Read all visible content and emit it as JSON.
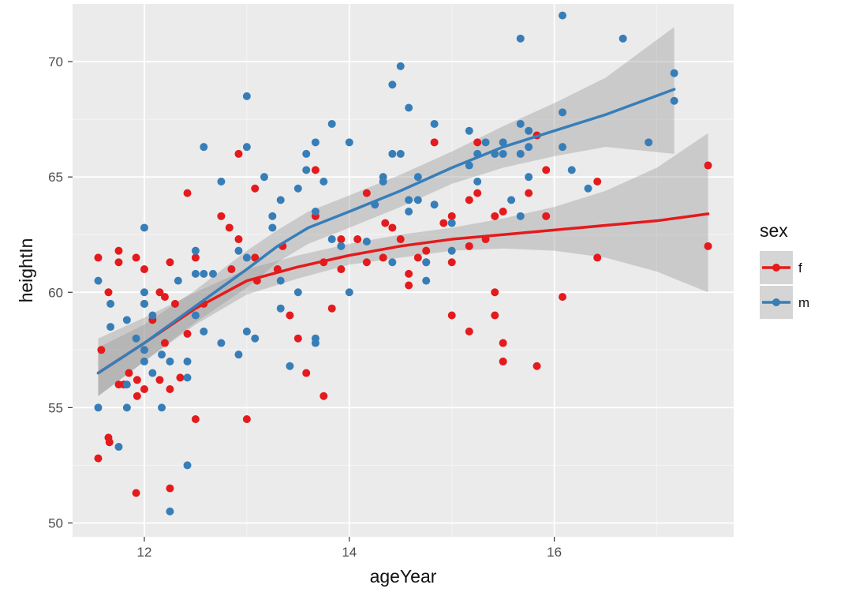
{
  "chart_data": {
    "type": "scatter",
    "title": "",
    "xlabel": "ageYear",
    "ylabel": "heightIn",
    "xlim": [
      11.3,
      17.75
    ],
    "ylim": [
      49.4,
      72.5
    ],
    "x_ticks": [
      12,
      14,
      16
    ],
    "x_tick_labels": [
      "12",
      "14",
      "16"
    ],
    "y_ticks": [
      50,
      55,
      60,
      65,
      70
    ],
    "y_tick_labels": [
      "50",
      "55",
      "60",
      "65",
      "70"
    ],
    "grid": true,
    "legend": {
      "title": "sex",
      "position": "right",
      "entries": [
        {
          "label": "f",
          "color": "#e41a1c"
        },
        {
          "label": "m",
          "color": "#377eb8"
        }
      ]
    },
    "series": [
      {
        "name": "f",
        "color": "#e41a1c",
        "points": [
          [
            11.55,
            61.5
          ],
          [
            11.58,
            57.5
          ],
          [
            11.55,
            52.8
          ],
          [
            11.65,
            53.7
          ],
          [
            11.66,
            53.5
          ],
          [
            11.65,
            60
          ],
          [
            11.75,
            61.8
          ],
          [
            11.75,
            61.3
          ],
          [
            11.75,
            56
          ],
          [
            11.8,
            56
          ],
          [
            11.85,
            56.5
          ],
          [
            11.92,
            61.5
          ],
          [
            11.93,
            56.2
          ],
          [
            11.93,
            55.5
          ],
          [
            11.92,
            51.3
          ],
          [
            12,
            61
          ],
          [
            12,
            55.8
          ],
          [
            12,
            59.5
          ],
          [
            12.08,
            58.8
          ],
          [
            12.15,
            60
          ],
          [
            12.15,
            56.2
          ],
          [
            12.2,
            59.8
          ],
          [
            12.2,
            57.8
          ],
          [
            12.25,
            61.3
          ],
          [
            12.25,
            51.5
          ],
          [
            12.25,
            55.8
          ],
          [
            12.3,
            59.5
          ],
          [
            12.35,
            56.3
          ],
          [
            12.42,
            64.3
          ],
          [
            12.42,
            58.2
          ],
          [
            12.5,
            61.5
          ],
          [
            12.5,
            54.5
          ],
          [
            12.58,
            59.5
          ],
          [
            12.75,
            63.3
          ],
          [
            12.83,
            62.8
          ],
          [
            12.85,
            61
          ],
          [
            12.92,
            66
          ],
          [
            12.92,
            62.3
          ],
          [
            13,
            54.5
          ],
          [
            13.08,
            64.5
          ],
          [
            13.08,
            61.5
          ],
          [
            13.1,
            60.5
          ],
          [
            13.3,
            61
          ],
          [
            13.35,
            62
          ],
          [
            13.42,
            59
          ],
          [
            13.5,
            58
          ],
          [
            13.58,
            56.5
          ],
          [
            13.67,
            63.3
          ],
          [
            13.67,
            65.3
          ],
          [
            13.75,
            55.5
          ],
          [
            13.75,
            61.3
          ],
          [
            13.83,
            59.3
          ],
          [
            13.92,
            61
          ],
          [
            13.92,
            62.3
          ],
          [
            14.08,
            62.3
          ],
          [
            14.17,
            61.3
          ],
          [
            14.17,
            64.3
          ],
          [
            14.33,
            61.5
          ],
          [
            14.35,
            63
          ],
          [
            14.42,
            62.8
          ],
          [
            14.5,
            62.3
          ],
          [
            14.58,
            60.3
          ],
          [
            14.58,
            60.8
          ],
          [
            14.67,
            61.5
          ],
          [
            14.75,
            61.8
          ],
          [
            14.75,
            61.3
          ],
          [
            14.83,
            66.5
          ],
          [
            14.92,
            63
          ],
          [
            15,
            63.3
          ],
          [
            15,
            59
          ],
          [
            15,
            61.3
          ],
          [
            15.17,
            64
          ],
          [
            15.17,
            58.3
          ],
          [
            15.17,
            62
          ],
          [
            15.25,
            64.3
          ],
          [
            15.25,
            66.5
          ],
          [
            15.33,
            62.3
          ],
          [
            15.42,
            60
          ],
          [
            15.42,
            59
          ],
          [
            15.42,
            63.3
          ],
          [
            15.5,
            63.5
          ],
          [
            15.5,
            57.8
          ],
          [
            15.5,
            57
          ],
          [
            15.75,
            64.3
          ],
          [
            15.83,
            56.8
          ],
          [
            15.83,
            66.8
          ],
          [
            15.92,
            65.3
          ],
          [
            15.92,
            63.3
          ],
          [
            16.08,
            59.8
          ],
          [
            16.42,
            64.8
          ],
          [
            16.42,
            61.5
          ],
          [
            17.5,
            65.5
          ],
          [
            17.5,
            62
          ]
        ]
      },
      {
        "name": "m",
        "color": "#377eb8",
        "points": [
          [
            11.55,
            60.5
          ],
          [
            11.55,
            55
          ],
          [
            11.67,
            59.5
          ],
          [
            11.67,
            58.5
          ],
          [
            11.75,
            53.3
          ],
          [
            11.83,
            58.8
          ],
          [
            11.83,
            55
          ],
          [
            11.83,
            56
          ],
          [
            11.92,
            58
          ],
          [
            12,
            62.8
          ],
          [
            12,
            60
          ],
          [
            12,
            59.5
          ],
          [
            12,
            57.5
          ],
          [
            12,
            57
          ],
          [
            12.08,
            59
          ],
          [
            12.08,
            56.5
          ],
          [
            12.17,
            57.3
          ],
          [
            12.17,
            55
          ],
          [
            12.25,
            57
          ],
          [
            12.25,
            50.5
          ],
          [
            12.33,
            60.5
          ],
          [
            12.42,
            57
          ],
          [
            12.42,
            56.3
          ],
          [
            12.42,
            52.5
          ],
          [
            12.5,
            61.8
          ],
          [
            12.5,
            60.8
          ],
          [
            12.5,
            59
          ],
          [
            12.58,
            66.3
          ],
          [
            12.58,
            60.8
          ],
          [
            12.58,
            58.3
          ],
          [
            12.67,
            60.8
          ],
          [
            12.75,
            64.8
          ],
          [
            12.75,
            57.8
          ],
          [
            12.92,
            61.8
          ],
          [
            12.92,
            57.3
          ],
          [
            13,
            68.5
          ],
          [
            13,
            66.3
          ],
          [
            13,
            61.5
          ],
          [
            13,
            58.3
          ],
          [
            13.08,
            58
          ],
          [
            13.17,
            65
          ],
          [
            13.25,
            63.3
          ],
          [
            13.25,
            62.8
          ],
          [
            13.33,
            64
          ],
          [
            13.33,
            60.5
          ],
          [
            13.33,
            59.3
          ],
          [
            13.42,
            56.8
          ],
          [
            13.5,
            64.5
          ],
          [
            13.5,
            60
          ],
          [
            13.58,
            66
          ],
          [
            13.58,
            65.3
          ],
          [
            13.67,
            66.5
          ],
          [
            13.67,
            63.5
          ],
          [
            13.67,
            58
          ],
          [
            13.67,
            57.8
          ],
          [
            13.75,
            64.8
          ],
          [
            13.83,
            67.3
          ],
          [
            13.83,
            62.3
          ],
          [
            13.92,
            62
          ],
          [
            14,
            66.5
          ],
          [
            14,
            60
          ],
          [
            14.17,
            62.2
          ],
          [
            14.25,
            63.8
          ],
          [
            14.33,
            65
          ],
          [
            14.33,
            64.8
          ],
          [
            14.42,
            69
          ],
          [
            14.42,
            66
          ],
          [
            14.42,
            61.3
          ],
          [
            14.5,
            69.8
          ],
          [
            14.5,
            66
          ],
          [
            14.58,
            68
          ],
          [
            14.58,
            64
          ],
          [
            14.58,
            63.5
          ],
          [
            14.67,
            65
          ],
          [
            14.67,
            64
          ],
          [
            14.75,
            61.3
          ],
          [
            14.75,
            60.5
          ],
          [
            14.83,
            67.3
          ],
          [
            14.83,
            63.8
          ],
          [
            15,
            63
          ],
          [
            15,
            61.8
          ],
          [
            15.17,
            67
          ],
          [
            15.17,
            65.5
          ],
          [
            15.25,
            66
          ],
          [
            15.25,
            64.8
          ],
          [
            15.33,
            66.5
          ],
          [
            15.42,
            66
          ],
          [
            15.5,
            66.5
          ],
          [
            15.5,
            66
          ],
          [
            15.58,
            64
          ],
          [
            15.67,
            71
          ],
          [
            15.67,
            67.3
          ],
          [
            15.67,
            66
          ],
          [
            15.67,
            63.3
          ],
          [
            15.75,
            67
          ],
          [
            15.75,
            66.3
          ],
          [
            15.75,
            65
          ],
          [
            16.08,
            72
          ],
          [
            16.08,
            67.8
          ],
          [
            16.08,
            66.3
          ],
          [
            16.17,
            65.3
          ],
          [
            16.33,
            64.5
          ],
          [
            16.67,
            71
          ],
          [
            16.92,
            66.5
          ],
          [
            17.17,
            69.5
          ],
          [
            17.17,
            68.3
          ]
        ]
      }
    ],
    "smooth": [
      {
        "name": "f",
        "color": "#e41a1c",
        "line": [
          [
            11.55,
            56.5
          ],
          [
            12,
            57.8
          ],
          [
            12.5,
            59.3
          ],
          [
            13,
            60.5
          ],
          [
            13.5,
            61.1
          ],
          [
            14,
            61.6
          ],
          [
            14.5,
            62
          ],
          [
            15,
            62.3
          ],
          [
            15.5,
            62.5
          ],
          [
            16,
            62.7
          ],
          [
            16.5,
            62.9
          ],
          [
            17,
            63.1
          ],
          [
            17.5,
            63.4
          ]
        ],
        "band": [
          [
            11.55,
            55.5,
            58
          ],
          [
            12,
            57,
            58.9
          ],
          [
            12.5,
            58.6,
            60
          ],
          [
            13,
            59.9,
            61
          ],
          [
            13.5,
            60.6,
            61.6
          ],
          [
            14,
            61.2,
            62.1
          ],
          [
            14.5,
            61.5,
            62.5
          ],
          [
            15,
            61.8,
            62.8
          ],
          [
            15.5,
            61.9,
            63.2
          ],
          [
            16,
            61.8,
            63.7
          ],
          [
            16.5,
            61.5,
            64.4
          ],
          [
            17,
            60.9,
            65.4
          ],
          [
            17.5,
            60,
            66.9
          ]
        ]
      },
      {
        "name": "m",
        "color": "#377eb8",
        "line": [
          [
            11.55,
            56.5
          ],
          [
            12,
            57.8
          ],
          [
            12.5,
            59.4
          ],
          [
            13,
            61
          ],
          [
            13.3,
            62
          ],
          [
            13.6,
            62.8
          ],
          [
            14,
            63.5
          ],
          [
            14.5,
            64.4
          ],
          [
            15,
            65.4
          ],
          [
            15.5,
            66.3
          ],
          [
            16,
            67
          ],
          [
            16.5,
            67.7
          ],
          [
            17.17,
            68.8
          ]
        ],
        "band": [
          [
            11.55,
            55.5,
            57.6
          ],
          [
            12,
            57,
            58.6
          ],
          [
            12.5,
            58.7,
            60.1
          ],
          [
            13,
            60.2,
            61.8
          ],
          [
            13.3,
            61.3,
            62.7
          ],
          [
            13.6,
            62.1,
            63.5
          ],
          [
            14,
            62.8,
            64.2
          ],
          [
            14.5,
            63.7,
            65.1
          ],
          [
            15,
            64.7,
            66.1
          ],
          [
            15.5,
            65.4,
            67.2
          ],
          [
            16,
            65.9,
            68.2
          ],
          [
            16.5,
            66.3,
            69.3
          ],
          [
            17.17,
            66,
            71.5
          ]
        ]
      }
    ]
  }
}
